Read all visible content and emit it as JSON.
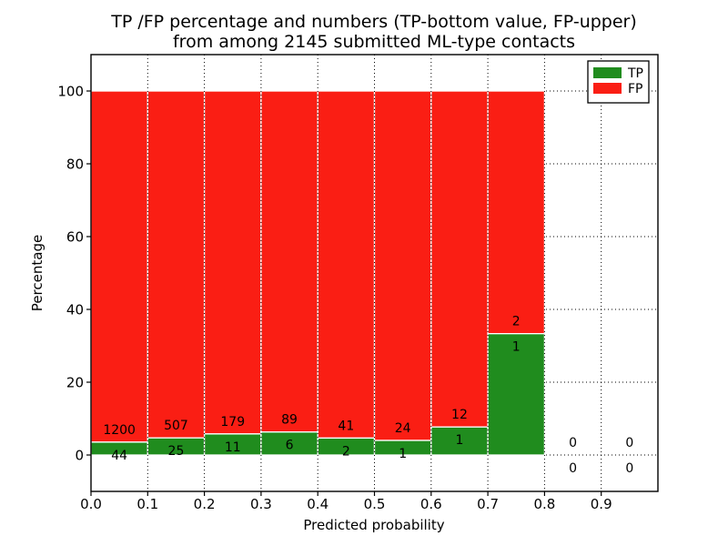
{
  "figure": {
    "title_line1": "TP /FP percentage and numbers (TP-bottom value, FP-upper)",
    "title_line2": "from among 2145 submitted ML-type contacts",
    "background_color": "#ffffff"
  },
  "axes": {
    "xlabel": "Predicted probability",
    "ylabel": "Percentage",
    "xtick_labels": [
      "0.0",
      "0.1",
      "0.2",
      "0.3",
      "0.4",
      "0.5",
      "0.6",
      "0.7",
      "0.8",
      "0.9"
    ],
    "xtick_values": [
      0.0,
      0.1,
      0.2,
      0.3,
      0.4,
      0.5,
      0.6,
      0.7,
      0.8,
      0.9
    ],
    "ytick_labels": [
      "0",
      "20",
      "40",
      "60",
      "80",
      "100"
    ],
    "ytick_values": [
      0,
      20,
      40,
      60,
      80,
      100
    ],
    "xlim": [
      0.0,
      1.0
    ],
    "ylim": [
      -10,
      110
    ],
    "grid_style": "dotted",
    "frame_color": "#000000"
  },
  "legend": {
    "position": "upper right",
    "items": [
      {
        "label": "TP",
        "color": "#208c1e",
        "swatch": "tp-color-swatch"
      },
      {
        "label": "FP",
        "color": "#fa1e14",
        "swatch": "fp-color-swatch"
      }
    ]
  },
  "chart_data": {
    "type": "bar",
    "stacked": true,
    "unit": "percent",
    "title": "TP /FP percentage and numbers (TP-bottom value, FP-upper) from among 2145 submitted ML-type contacts",
    "xlabel": "Predicted probability",
    "ylabel": "Percentage",
    "xlim": [
      0.0,
      1.0
    ],
    "ylim": [
      -10,
      110
    ],
    "grid": true,
    "legend_position": "upper right",
    "total_submitted_contacts": 2145,
    "bin_width": 0.1,
    "categories": [
      "0.0-0.1",
      "0.1-0.2",
      "0.2-0.3",
      "0.3-0.4",
      "0.4-0.5",
      "0.5-0.6",
      "0.6-0.7",
      "0.7-0.8",
      "0.8-0.9",
      "0.9-1.0"
    ],
    "bins": [
      {
        "range": [
          0.0,
          0.1
        ],
        "tp_count": 44,
        "fp_count": 1200,
        "tp_pct": 3.54,
        "fp_pct": 96.46
      },
      {
        "range": [
          0.1,
          0.2
        ],
        "tp_count": 25,
        "fp_count": 507,
        "tp_pct": 4.7,
        "fp_pct": 95.3
      },
      {
        "range": [
          0.2,
          0.3
        ],
        "tp_count": 11,
        "fp_count": 179,
        "tp_pct": 5.79,
        "fp_pct": 94.21
      },
      {
        "range": [
          0.3,
          0.4
        ],
        "tp_count": 6,
        "fp_count": 89,
        "tp_pct": 6.32,
        "fp_pct": 93.68
      },
      {
        "range": [
          0.4,
          0.5
        ],
        "tp_count": 2,
        "fp_count": 41,
        "tp_pct": 4.65,
        "fp_pct": 95.35
      },
      {
        "range": [
          0.5,
          0.6
        ],
        "tp_count": 1,
        "fp_count": 24,
        "tp_pct": 4.0,
        "fp_pct": 96.0
      },
      {
        "range": [
          0.6,
          0.7
        ],
        "tp_count": 1,
        "fp_count": 12,
        "tp_pct": 7.69,
        "fp_pct": 92.31
      },
      {
        "range": [
          0.7,
          0.8
        ],
        "tp_count": 1,
        "fp_count": 2,
        "tp_pct": 33.33,
        "fp_pct": 66.67
      },
      {
        "range": [
          0.8,
          0.9
        ],
        "tp_count": 0,
        "fp_count": 0,
        "tp_pct": 0,
        "fp_pct": 0
      },
      {
        "range": [
          0.9,
          1.0
        ],
        "tp_count": 0,
        "fp_count": 0,
        "tp_pct": 0,
        "fp_pct": 0
      }
    ],
    "series": [
      {
        "name": "TP",
        "color": "#208c1e",
        "counts": [
          44,
          25,
          11,
          6,
          2,
          1,
          1,
          1,
          0,
          0
        ],
        "percentages": [
          3.54,
          4.7,
          5.79,
          6.32,
          4.65,
          4.0,
          7.69,
          33.33,
          0,
          0
        ]
      },
      {
        "name": "FP",
        "color": "#fa1e14",
        "counts": [
          1200,
          507,
          179,
          89,
          41,
          24,
          12,
          2,
          0,
          0
        ],
        "percentages": [
          96.46,
          95.3,
          94.21,
          93.68,
          95.35,
          96.0,
          92.31,
          66.67,
          0,
          0
        ]
      }
    ],
    "bar_edge_color": "#ffffff"
  }
}
